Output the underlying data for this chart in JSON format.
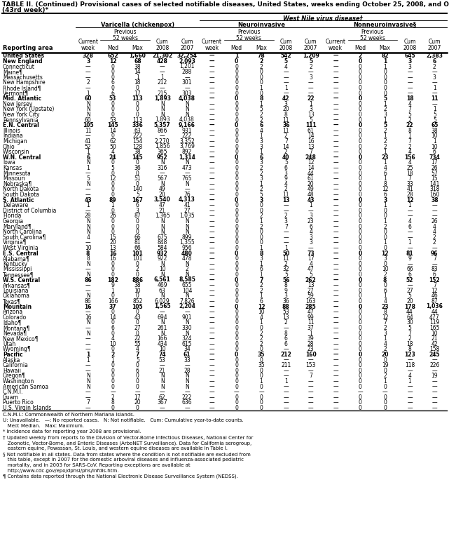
{
  "title_line1": "TABLE II. (Continued) Provisional cases of selected notifiable diseases, United States, weeks ending October 25, 2008, and October 27, 2007",
  "title_line2": "(43rd week)*",
  "bold_rows": [
    "United States",
    "New England",
    "Mid. Atlantic",
    "E.N. Central",
    "W.N. Central",
    "S. Atlantic",
    "E.S. Central",
    "W.S. Central",
    "Mountain",
    "Pacific"
  ],
  "rows": [
    [
      "United States",
      "328",
      "652",
      "1,660",
      "21,302",
      "32,254",
      "—",
      "1",
      "78",
      "542",
      "1,209",
      "—",
      "2",
      "82",
      "645",
      "2,383"
    ],
    [
      "New England",
      "3",
      "12",
      "68",
      "428",
      "2,093",
      "—",
      "0",
      "2",
      "5",
      "5",
      "—",
      "0",
      "1",
      "3",
      "6"
    ],
    [
      "Connecticut",
      "—",
      "0",
      "38",
      "—",
      "1,201",
      "—",
      "0",
      "2",
      "4",
      "2",
      "—",
      "0",
      "1",
      "3",
      "2"
    ],
    [
      "Maine¶",
      "—",
      "0",
      "14",
      "—",
      "288",
      "—",
      "0",
      "0",
      "—",
      "—",
      "—",
      "0",
      "0",
      "—",
      "—"
    ],
    [
      "Massachusetts",
      "—",
      "0",
      "1",
      "1",
      "—",
      "—",
      "0",
      "0",
      "—",
      "3",
      "—",
      "0",
      "0",
      "—",
      "3"
    ],
    [
      "New Hampshire",
      "2",
      "6",
      "18",
      "212",
      "301",
      "—",
      "0",
      "0",
      "—",
      "—",
      "—",
      "0",
      "0",
      "—",
      "—"
    ],
    [
      "Rhode Island¶",
      "—",
      "0",
      "0",
      "—",
      "—",
      "—",
      "0",
      "1",
      "1",
      "—",
      "—",
      "0",
      "0",
      "—",
      "1"
    ],
    [
      "Vermont¶",
      "1",
      "6",
      "17",
      "215",
      "303",
      "—",
      "0",
      "0",
      "—",
      "—",
      "—",
      "0",
      "0",
      "—",
      "—"
    ],
    [
      "Mid. Atlantic",
      "60",
      "53",
      "113",
      "1,893",
      "4,038",
      "—",
      "0",
      "8",
      "42",
      "22",
      "—",
      "0",
      "5",
      "18",
      "11"
    ],
    [
      "New Jersey",
      "N",
      "0",
      "0",
      "N",
      "N",
      "—",
      "0",
      "1",
      "3",
      "1",
      "—",
      "0",
      "1",
      "4",
      "—"
    ],
    [
      "New York (Upstate)",
      "N",
      "0",
      "0",
      "N",
      "N",
      "—",
      "0",
      "5",
      "20",
      "3",
      "—",
      "0",
      "2",
      "7",
      "1"
    ],
    [
      "New York City",
      "N",
      "0",
      "0",
      "N",
      "N",
      "—",
      "0",
      "2",
      "8",
      "13",
      "—",
      "0",
      "3",
      "5",
      "5"
    ],
    [
      "Pennsylvania",
      "60",
      "53",
      "113",
      "1,893",
      "4,038",
      "—",
      "0",
      "2",
      "11",
      "5",
      "—",
      "0",
      "1",
      "2",
      "5"
    ],
    [
      "E.N. Central",
      "105",
      "145",
      "336",
      "5,357",
      "9,166",
      "—",
      "0",
      "6",
      "36",
      "111",
      "—",
      "0",
      "5",
      "22",
      "65"
    ],
    [
      "Illinois",
      "11",
      "14",
      "63",
      "866",
      "931",
      "—",
      "0",
      "4",
      "11",
      "61",
      "—",
      "0",
      "2",
      "8",
      "38"
    ],
    [
      "Indiana",
      "—",
      "0",
      "222",
      "—",
      "222",
      "—",
      "0",
      "1",
      "2",
      "14",
      "—",
      "0",
      "1",
      "1",
      "10"
    ],
    [
      "Michigan",
      "41",
      "62",
      "154",
      "2,270",
      "3,352",
      "—",
      "0",
      "3",
      "7",
      "16",
      "—",
      "0",
      "2",
      "7",
      "1"
    ],
    [
      "Ohio",
      "52",
      "50",
      "128",
      "1,856",
      "3,769",
      "—",
      "0",
      "3",
      "14",
      "13",
      "—",
      "0",
      "2",
      "2",
      "10"
    ],
    [
      "Wisconsin",
      "1",
      "4",
      "38",
      "365",
      "892",
      "—",
      "0",
      "1",
      "2",
      "7",
      "—",
      "0",
      "1",
      "4",
      "6"
    ],
    [
      "W.N. Central",
      "6",
      "24",
      "145",
      "952",
      "1,314",
      "—",
      "0",
      "6",
      "40",
      "248",
      "—",
      "0",
      "23",
      "156",
      "734"
    ],
    [
      "Iowa",
      "N",
      "0",
      "0",
      "N",
      "N",
      "—",
      "0",
      "3",
      "5",
      "12",
      "—",
      "0",
      "1",
      "4",
      "17"
    ],
    [
      "Kansas",
      "1",
      "5",
      "36",
      "316",
      "473",
      "—",
      "0",
      "2",
      "6",
      "14",
      "—",
      "0",
      "4",
      "25",
      "26"
    ],
    [
      "Minnesota",
      "—",
      "0",
      "0",
      "—",
      "—",
      "—",
      "0",
      "2",
      "3",
      "44",
      "—",
      "0",
      "6",
      "18",
      "57"
    ],
    [
      "Missouri",
      "5",
      "12",
      "51",
      "567",
      "765",
      "—",
      "0",
      "3",
      "9",
      "61",
      "—",
      "0",
      "1",
      "7",
      "15"
    ],
    [
      "Nebraska¶",
      "N",
      "0",
      "0",
      "N",
      "N",
      "—",
      "0",
      "1",
      "4",
      "20",
      "—",
      "0",
      "8",
      "33",
      "141"
    ],
    [
      "North Dakota",
      "—",
      "0",
      "140",
      "49",
      "—",
      "—",
      "0",
      "2",
      "2",
      "49",
      "—",
      "0",
      "12",
      "41",
      "318"
    ],
    [
      "South Dakota",
      "—",
      "0",
      "5",
      "20",
      "76",
      "—",
      "0",
      "5",
      "11",
      "48",
      "—",
      "0",
      "6",
      "28",
      "160"
    ],
    [
      "S. Atlantic",
      "43",
      "89",
      "167",
      "3,540",
      "4,313",
      "—",
      "0",
      "3",
      "13",
      "43",
      "—",
      "0",
      "3",
      "12",
      "38"
    ],
    [
      "Delaware",
      "1",
      "1",
      "6",
      "47",
      "41",
      "—",
      "0",
      "0",
      "—",
      "1",
      "—",
      "0",
      "1",
      "1",
      "—"
    ],
    [
      "District of Columbia",
      "—",
      "0",
      "3",
      "21",
      "27",
      "—",
      "0",
      "0",
      "—",
      "—",
      "—",
      "0",
      "0",
      "—",
      "—"
    ],
    [
      "Florida",
      "28",
      "26",
      "87",
      "1,365",
      "1,035",
      "—",
      "0",
      "2",
      "2",
      "3",
      "—",
      "0",
      "0",
      "—",
      "—"
    ],
    [
      "Georgia",
      "N",
      "0",
      "0",
      "N",
      "N",
      "—",
      "0",
      "1",
      "3",
      "23",
      "—",
      "0",
      "1",
      "4",
      "26"
    ],
    [
      "Maryland¶",
      "N",
      "0",
      "0",
      "N",
      "N",
      "—",
      "0",
      "2",
      "7",
      "6",
      "—",
      "0",
      "2",
      "6",
      "4"
    ],
    [
      "North Carolina",
      "N",
      "0",
      "0",
      "N",
      "N",
      "—",
      "0",
      "0",
      "—",
      "4",
      "—",
      "0",
      "0",
      "—",
      "4"
    ],
    [
      "South Carolina¶",
      "4",
      "15",
      "66",
      "675",
      "899",
      "—",
      "0",
      "0",
      "—",
      "3",
      "—",
      "0",
      "0",
      "—",
      "2"
    ],
    [
      "Virginia¶",
      "—",
      "20",
      "81",
      "848",
      "1,355",
      "—",
      "0",
      "0",
      "—",
      "3",
      "—",
      "0",
      "1",
      "1",
      "2"
    ],
    [
      "West Virginia",
      "10",
      "13",
      "66",
      "584",
      "956",
      "—",
      "0",
      "1",
      "1",
      "—",
      "—",
      "0",
      "0",
      "—",
      "—"
    ],
    [
      "E.S. Central",
      "8",
      "16",
      "101",
      "932",
      "480",
      "—",
      "0",
      "8",
      "50",
      "73",
      "—",
      "0",
      "12",
      "81",
      "96"
    ],
    [
      "Alabama¶",
      "8",
      "16",
      "101",
      "922",
      "478",
      "—",
      "0",
      "3",
      "11",
      "17",
      "—",
      "0",
      "3",
      "9",
      "7"
    ],
    [
      "Kentucky",
      "N",
      "0",
      "0",
      "N",
      "N",
      "—",
      "0",
      "1",
      "2",
      "4",
      "—",
      "0",
      "0",
      "—",
      "—"
    ],
    [
      "Mississippi",
      "—",
      "0",
      "2",
      "10",
      "2",
      "—",
      "0",
      "6",
      "32",
      "47",
      "—",
      "0",
      "10",
      "66",
      "83"
    ],
    [
      "Tennessee¶",
      "N",
      "0",
      "0",
      "N",
      "N",
      "—",
      "0",
      "1",
      "5",
      "5",
      "—",
      "0",
      "2",
      "6",
      "6"
    ],
    [
      "W.S. Central",
      "86",
      "182",
      "886",
      "6,561",
      "8,585",
      "—",
      "0",
      "7",
      "56",
      "262",
      "—",
      "0",
      "8",
      "52",
      "152"
    ],
    [
      "Arkansas¶",
      "—",
      "9",
      "38",
      "469",
      "655",
      "—",
      "0",
      "2",
      "8",
      "13",
      "—",
      "0",
      "0",
      "—",
      "7"
    ],
    [
      "Louisiana",
      "—",
      "1",
      "10",
      "63",
      "104",
      "—",
      "0",
      "2",
      "9",
      "27",
      "—",
      "0",
      "6",
      "27",
      "12"
    ],
    [
      "Oklahoma",
      "N",
      "0",
      "0",
      "N",
      "N",
      "—",
      "0",
      "1",
      "3",
      "59",
      "—",
      "0",
      "1",
      "5",
      "46"
    ],
    [
      "Texas¶",
      "86",
      "166",
      "852",
      "6,029",
      "7,826",
      "—",
      "0",
      "6",
      "36",
      "163",
      "—",
      "0",
      "4",
      "20",
      "87"
    ],
    [
      "Mountain",
      "16",
      "37",
      "105",
      "1,565",
      "2,204",
      "—",
      "0",
      "12",
      "88",
      "285",
      "—",
      "0",
      "23",
      "178",
      "1,036"
    ],
    [
      "Arizona",
      "—",
      "0",
      "0",
      "—",
      "—",
      "—",
      "0",
      "10",
      "53",
      "47",
      "—",
      "0",
      "8",
      "44",
      "44"
    ],
    [
      "Colorado",
      "16",
      "14",
      "43",
      "694",
      "901",
      "—",
      "0",
      "4",
      "13",
      "99",
      "—",
      "0",
      "12",
      "64",
      "477"
    ],
    [
      "Idaho¶",
      "N",
      "0",
      "0",
      "N",
      "N",
      "—",
      "0",
      "1",
      "2",
      "11",
      "—",
      "0",
      "7",
      "30",
      "119"
    ],
    [
      "Montana¶",
      "—",
      "6",
      "27",
      "261",
      "330",
      "—",
      "0",
      "0",
      "—",
      "37",
      "—",
      "0",
      "2",
      "5",
      "165"
    ],
    [
      "Nevada¶",
      "N",
      "0",
      "0",
      "N",
      "N",
      "—",
      "0",
      "2",
      "8",
      "1",
      "—",
      "0",
      "3",
      "7",
      "10"
    ],
    [
      "New Mexico¶",
      "—",
      "4",
      "22",
      "166",
      "324",
      "—",
      "0",
      "2",
      "6",
      "39",
      "—",
      "0",
      "1",
      "2",
      "21"
    ],
    [
      "Utah",
      "—",
      "10",
      "55",
      "434",
      "615",
      "—",
      "0",
      "2",
      "6",
      "28",
      "—",
      "0",
      "4",
      "18",
      "42"
    ],
    [
      "Wyoming¶",
      "—",
      "0",
      "4",
      "10",
      "34",
      "—",
      "0",
      "0",
      "—",
      "23",
      "—",
      "0",
      "2",
      "8",
      "158"
    ],
    [
      "Pacific",
      "1",
      "2",
      "7",
      "74",
      "61",
      "—",
      "0",
      "35",
      "212",
      "160",
      "—",
      "0",
      "20",
      "123",
      "245"
    ],
    [
      "Alaska",
      "1",
      "1",
      "5",
      "53",
      "33",
      "—",
      "0",
      "0",
      "—",
      "—",
      "—",
      "0",
      "0",
      "—",
      "—"
    ],
    [
      "California",
      "—",
      "0",
      "0",
      "—",
      "—",
      "—",
      "0",
      "35",
      "211",
      "153",
      "—",
      "0",
      "19",
      "118",
      "226"
    ],
    [
      "Hawaii",
      "—",
      "0",
      "6",
      "21",
      "28",
      "—",
      "0",
      "0",
      "—",
      "—",
      "—",
      "0",
      "0",
      "—",
      "—"
    ],
    [
      "Oregon¶",
      "N",
      "0",
      "0",
      "N",
      "N",
      "—",
      "0",
      "0",
      "—",
      "7",
      "—",
      "0",
      "2",
      "4",
      "19"
    ],
    [
      "Washington",
      "N",
      "0",
      "0",
      "N",
      "N",
      "—",
      "0",
      "1",
      "1",
      "—",
      "—",
      "0",
      "1",
      "1",
      "—"
    ],
    [
      "American Samoa",
      "N",
      "0",
      "0",
      "N",
      "N",
      "—",
      "0",
      "0",
      "—",
      "—",
      "—",
      "0",
      "0",
      "—",
      "—"
    ],
    [
      "C.N.M.I.",
      "—",
      "—",
      "—",
      "—",
      "—",
      "—",
      "—",
      "—",
      "—",
      "—",
      "—",
      "—",
      "—",
      "—",
      "—",
      "—"
    ],
    [
      "Guam",
      "—",
      "2",
      "17",
      "62",
      "222",
      "—",
      "0",
      "0",
      "—",
      "—",
      "—",
      "0",
      "0",
      "—",
      "—"
    ],
    [
      "Puerto Rico",
      "7",
      "8",
      "20",
      "367",
      "636",
      "—",
      "0",
      "0",
      "—",
      "—",
      "—",
      "0",
      "0",
      "—",
      "—"
    ],
    [
      "U.S. Virgin Islands",
      "—",
      "0",
      "0",
      "—",
      "—",
      "—",
      "0",
      "0",
      "—",
      "—",
      "—",
      "0",
      "0",
      "—",
      "—"
    ]
  ],
  "footnotes": [
    "C.N.M.I.: Commonwealth of Northern Mariana Islands.",
    "U: Unavailable.   —: No reported cases.   N: Not notifiable.   Cum: Cumulative year-to-date counts.   Med: Median.   Max: Maximum.",
    "* Incidence data for reporting year 2008 are provisional.",
    "† Updated weekly from reports to the Division of Vector-Borne Infectious Diseases, National Center for Zoonotic, Vector-Borne, and Enteric Diseases (ArboNET Surveillance). Data for California serogroup, eastern equine, Powassan, St. Louis, and western equine diseases are available in Table I.",
    "§ Not notifiable in all states. Data from states where the condition is not notifiable are excluded from this table, except in 2007 for the domestic arboviral diseases and influenza-associated pediatric mortality, and in 2003 for SARS-CoV. Reporting exceptions are available at http://www.cdc.gov/epo/dphsi/phs/infdis.htm.",
    "¶ Contains data reported through the National Electronic Disease Surveillance System (NEDSS)."
  ],
  "font_size_title": 6.5,
  "font_size_header": 6.0,
  "font_size_subheader": 5.5,
  "font_size_data": 5.5,
  "font_size_footnote": 5.0
}
